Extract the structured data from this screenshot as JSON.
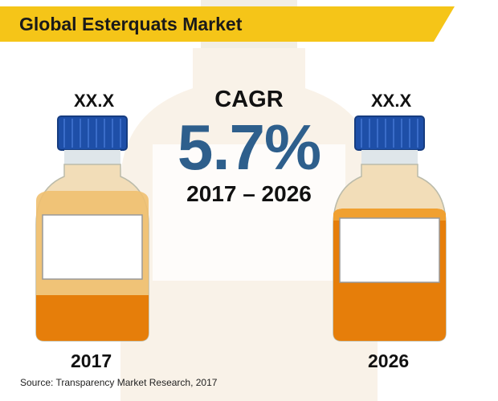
{
  "title": "Global Esterquats Market",
  "left": {
    "value": "XX.X",
    "year": "2017",
    "fill_level": 0.45
  },
  "right": {
    "value": "XX.X",
    "year": "2026",
    "fill_level": 0.8
  },
  "cagr": {
    "label": "CAGR",
    "value": "5.7%",
    "period": "2017 – 2026"
  },
  "source": "Source: Transparency Market Research, 2017",
  "colors": {
    "banner": "#f5c518",
    "cagr": "#2e5f8c",
    "cap": "#1e4fa8",
    "liquid": "#e67e0a",
    "liquid_light": "#f0c070"
  },
  "icons": [
    "bottle-icon",
    "bottle-icon",
    "background-bottle-icon"
  ]
}
